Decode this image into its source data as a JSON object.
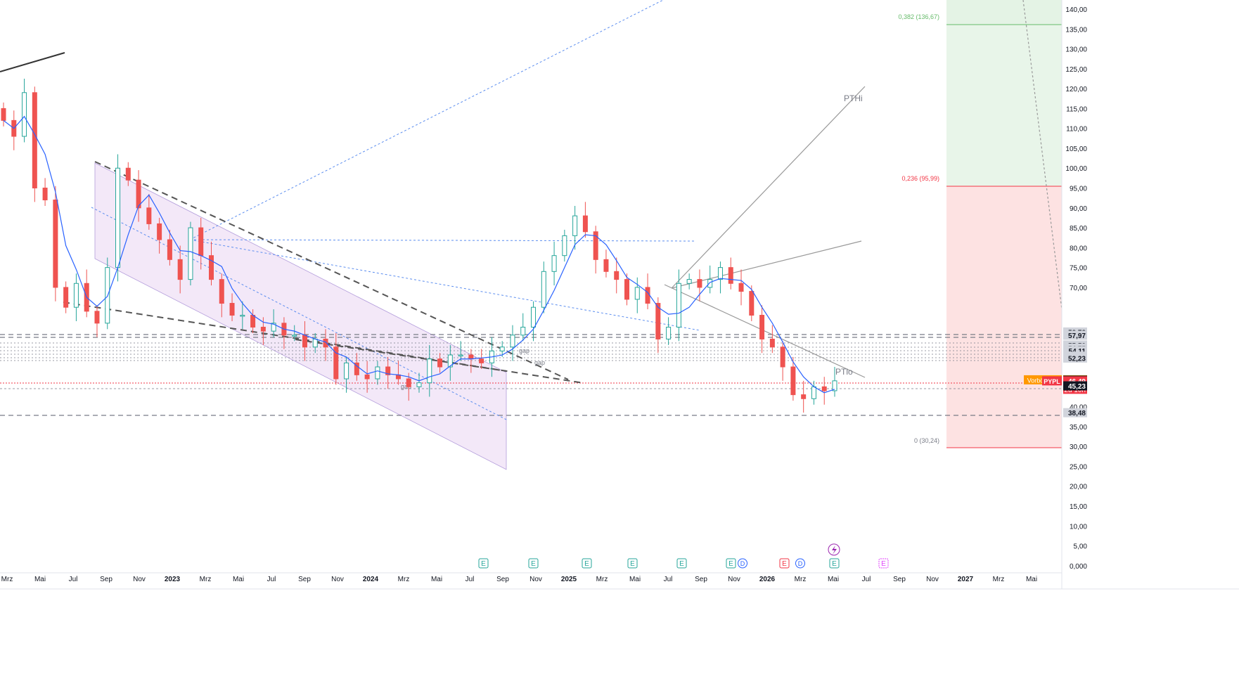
{
  "chart_data": {
    "type": "candlestick",
    "symbol": "PYPL",
    "x_axis_labels": [
      "Mrz",
      "Mai",
      "Jul",
      "Sep",
      "Nov",
      "2023",
      "Mrz",
      "Mai",
      "Jul",
      "Sep",
      "Nov",
      "2024",
      "Mrz",
      "Mai",
      "Jul",
      "Sep",
      "Nov",
      "2025",
      "Mrz",
      "Mai",
      "Jul",
      "Sep",
      "Nov",
      "2026",
      "Mrz",
      "Mai",
      "Jul",
      "Sep",
      "Nov",
      "2027",
      "Mrz",
      "Mai"
    ],
    "y_ticks": [
      "140,00",
      "135,00",
      "130,00",
      "125,00",
      "120,00",
      "115,00",
      "110,00",
      "105,00",
      "100,00",
      "95,00",
      "90,00",
      "85,00",
      "80,00",
      "75,00",
      "70,00",
      "40,00",
      "35,00",
      "30,00",
      "25,00",
      "20,00",
      "15,00",
      "10,00",
      "5,00",
      "0,000"
    ],
    "ylim": [
      0,
      141
    ],
    "price_badges": [
      {
        "text": "58,78",
        "price": 58.78,
        "kind": "level"
      },
      {
        "text": "57,97",
        "price": 57.97,
        "kind": "level"
      },
      {
        "text": "55,50",
        "price": 55.5,
        "kind": "level"
      },
      {
        "text": "54,75",
        "price": 54.75,
        "kind": "level"
      },
      {
        "text": "54,11",
        "price": 54.11,
        "kind": "level"
      },
      {
        "text": "52,70",
        "price": 52.7,
        "kind": "level"
      },
      {
        "text": "52,23",
        "price": 52.23,
        "kind": "level"
      },
      {
        "text": "46,75",
        "price": 46.75,
        "kind": "premarket"
      },
      {
        "text": "46,66",
        "price": 46.66,
        "kind": "dark"
      },
      {
        "text": "46,49",
        "price": 46.49,
        "kind": "last"
      },
      {
        "text": "45,23",
        "price": 45.23,
        "kind": "dark"
      },
      {
        "text": "38,48",
        "price": 38.48,
        "kind": "level"
      }
    ],
    "premarket_label": "Vorbörslich",
    "symbol_label": "PYPL",
    "countdown": "2d 10h",
    "fib_levels": [
      {
        "label": "0,382 (136,67)",
        "price": 136.67,
        "color": "#66bb6a"
      },
      {
        "label": "0,236 (95,99)",
        "price": 95.99,
        "color": "#f23645"
      },
      {
        "label": "0 (30,24)",
        "price": 30.24,
        "color": "#787b86"
      }
    ],
    "annotations": [
      "PTHi",
      "PTlo",
      "gap",
      "gap",
      "gap"
    ],
    "event_markers": [
      "E",
      "E",
      "E",
      "E",
      "E",
      "E",
      "D",
      "E",
      "D",
      "E",
      "E"
    ],
    "close_series": [
      112,
      108,
      119,
      95,
      92,
      70,
      65,
      71,
      64,
      61,
      75,
      100,
      97,
      90,
      86,
      82,
      77,
      72,
      85,
      78,
      72,
      66,
      63,
      63,
      60,
      59,
      61,
      58,
      58,
      55,
      57,
      55,
      47,
      51,
      48,
      47,
      50,
      48,
      47,
      45,
      46,
      52,
      50,
      53,
      53,
      52,
      51,
      54,
      55,
      58,
      60,
      65,
      74,
      78,
      83,
      88,
      84,
      77,
      74,
      72,
      67,
      70,
      66,
      57,
      60,
      71,
      72,
      70,
      72,
      75,
      71,
      69,
      63,
      57,
      55,
      50,
      43,
      42,
      45,
      44,
      46.5
    ]
  }
}
